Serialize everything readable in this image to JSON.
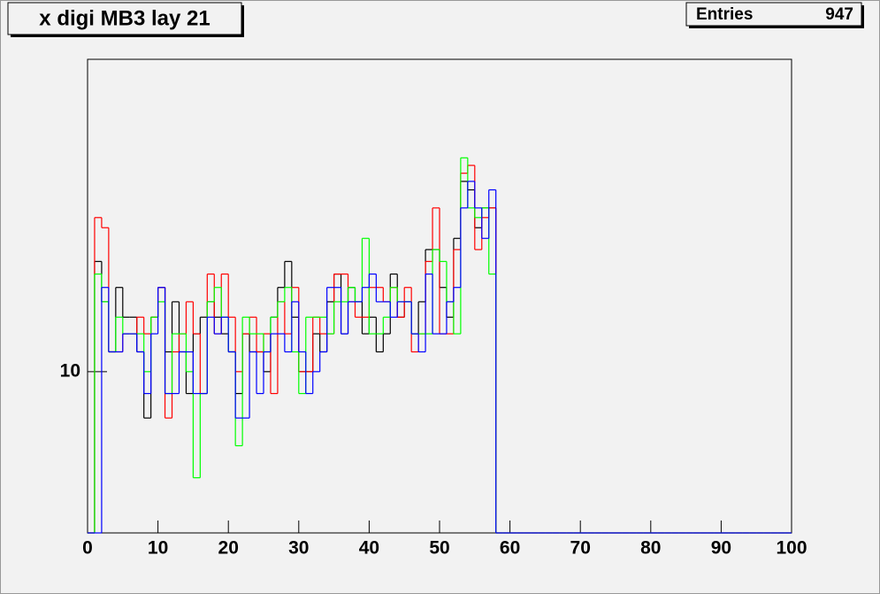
{
  "chart_data": {
    "type": "histogram",
    "title": "x digi MB3 lay 21",
    "stats_label": "Entries",
    "entries": 947,
    "log_y": true,
    "xlim": [
      0,
      100
    ],
    "ylim": [
      4.6,
      45
    ],
    "xticks": [
      0,
      10,
      20,
      30,
      40,
      50,
      60,
      70,
      80,
      90,
      100
    ],
    "yticks": [
      10
    ],
    "bins": [
      0,
      1,
      2,
      3,
      4,
      5,
      6,
      7,
      8,
      9,
      10,
      11,
      12,
      13,
      14,
      15,
      16,
      17,
      18,
      19,
      20,
      21,
      22,
      23,
      24,
      25,
      26,
      27,
      28,
      29,
      30,
      31,
      32,
      33,
      34,
      35,
      36,
      37,
      38,
      39,
      40,
      41,
      42,
      43,
      44,
      45,
      46,
      47,
      48,
      49,
      50,
      51,
      52,
      53,
      54,
      55,
      56,
      57,
      58,
      59,
      60,
      61,
      62,
      63,
      64,
      65,
      66,
      67,
      68,
      69,
      70,
      71,
      72,
      73,
      74,
      75,
      76,
      77,
      78,
      79,
      80,
      81,
      82,
      83,
      84,
      85,
      86,
      87,
      88,
      89,
      90,
      91,
      92,
      93,
      94,
      95,
      96,
      97,
      98,
      99,
      100
    ],
    "series": [
      {
        "color": "#000000",
        "values": [
          0,
          17,
          14,
          11,
          15,
          13,
          13,
          11,
          8,
          13,
          15,
          11,
          14,
          11,
          9,
          12,
          13,
          14,
          13,
          12,
          11,
          9,
          12,
          11,
          11,
          10,
          13,
          15,
          17,
          13,
          10,
          10,
          12,
          11,
          14,
          16,
          12,
          15,
          14,
          12,
          13,
          11,
          12,
          16,
          13,
          14,
          12,
          14,
          18,
          18,
          15,
          13,
          19,
          25,
          24,
          20,
          22,
          22,
          0,
          0,
          0,
          0,
          0,
          0,
          0,
          0,
          0,
          0,
          0,
          0,
          0,
          0,
          0,
          0,
          0,
          0,
          0,
          0,
          0,
          0,
          0,
          0,
          0,
          0,
          0,
          0,
          0,
          0,
          0,
          0,
          0,
          0,
          0,
          0,
          0,
          0,
          0,
          0,
          0,
          0
        ]
      },
      {
        "color": "#ff0000",
        "values": [
          0,
          21,
          20,
          11,
          11,
          12,
          12,
          13,
          12,
          13,
          15,
          8,
          11,
          12,
          14,
          12,
          9,
          16,
          12,
          16,
          13,
          10,
          12,
          13,
          11,
          12,
          9,
          14,
          12,
          15,
          10,
          10,
          13,
          12,
          12,
          16,
          16,
          14,
          13,
          13,
          15,
          15,
          14,
          15,
          13,
          15,
          11,
          12,
          17,
          22,
          12,
          12,
          18,
          26,
          27,
          18,
          21,
          22,
          0,
          0,
          0,
          0,
          0,
          0,
          0,
          0,
          0,
          0,
          0,
          0,
          0,
          0,
          0,
          0,
          0,
          0,
          0,
          0,
          0,
          0,
          0,
          0,
          0,
          0,
          0,
          0,
          0,
          0,
          0,
          0,
          0,
          0,
          0,
          0,
          0,
          0,
          0,
          0,
          0,
          0
        ]
      },
      {
        "color": "#00ff00",
        "values": [
          0,
          16,
          14,
          11,
          13,
          12,
          12,
          12,
          10,
          13,
          14,
          9,
          12,
          12,
          10,
          6,
          9,
          14,
          15,
          13,
          11,
          7,
          13,
          12,
          12,
          11,
          13,
          14,
          15,
          11,
          9,
          13,
          13,
          13,
          12,
          14,
          14,
          15,
          14,
          19,
          12,
          12,
          13,
          15,
          14,
          14,
          12,
          12,
          12,
          18,
          17,
          14,
          12,
          28,
          22,
          21,
          22,
          16,
          0,
          0,
          0,
          0,
          0,
          0,
          0,
          0,
          0,
          0,
          0,
          0,
          0,
          0,
          0,
          0,
          0,
          0,
          0,
          0,
          0,
          0,
          0,
          0,
          0,
          0,
          0,
          0,
          0,
          0,
          0,
          0,
          0,
          0,
          0,
          0,
          0,
          0,
          0,
          0,
          0,
          0
        ]
      },
      {
        "color": "#0000ff",
        "values": [
          0,
          0,
          15,
          11,
          11,
          12,
          12,
          11,
          9,
          12,
          15,
          9,
          9,
          11,
          11,
          9,
          9,
          13,
          12,
          13,
          11,
          8,
          8,
          11,
          9,
          11,
          12,
          12,
          11,
          14,
          11,
          9,
          10,
          11,
          15,
          15,
          12,
          14,
          14,
          15,
          16,
          14,
          14,
          13,
          14,
          14,
          12,
          11,
          16,
          12,
          12,
          14,
          15,
          22,
          25,
          22,
          19,
          24,
          0,
          0,
          0,
          0,
          0,
          0,
          0,
          0,
          0,
          0,
          0,
          0,
          0,
          0,
          0,
          0,
          0,
          0,
          0,
          0,
          0,
          0,
          0,
          0,
          0,
          0,
          0,
          0,
          0,
          0,
          0,
          0,
          0,
          0,
          0,
          0,
          0,
          0,
          0,
          0,
          0,
          0
        ]
      }
    ]
  }
}
